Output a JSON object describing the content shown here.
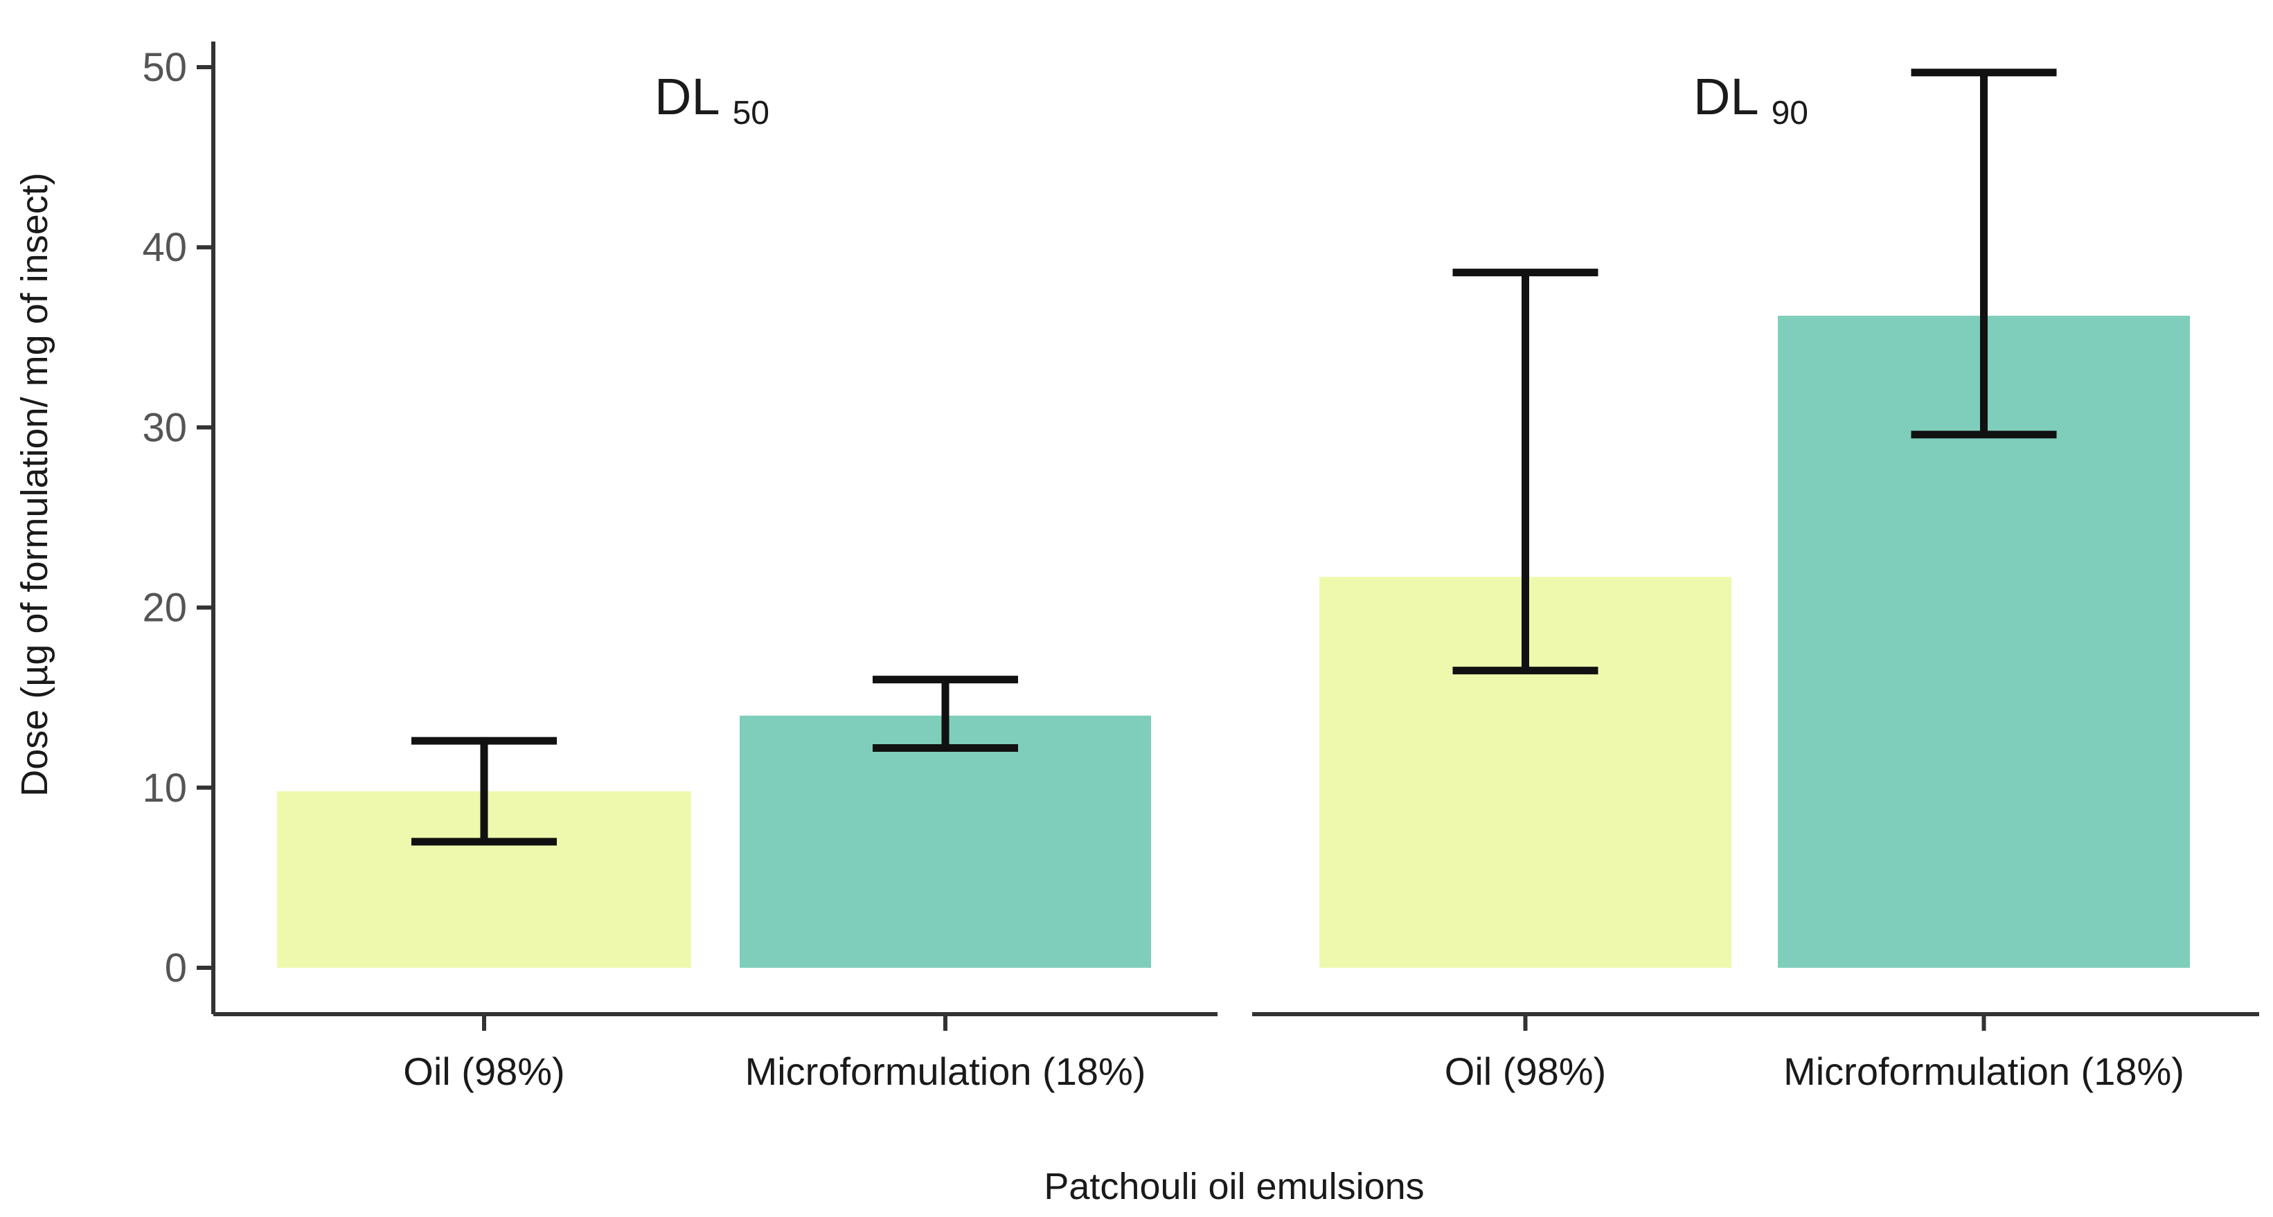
{
  "chart_data": {
    "type": "bar",
    "xlabel": "Patchouli oil emulsions",
    "ylabel": "Dose (µg of formulation/ mg of insect)",
    "ylim": [
      0,
      51
    ],
    "yticks": [
      0,
      10,
      20,
      30,
      40,
      50
    ],
    "grid": false,
    "legend": "none",
    "panels": [
      {
        "title_main": "DL",
        "title_sub": "50",
        "categories": [
          "Oil (98%)",
          "Microformulation (18%)"
        ],
        "values": [
          9.8,
          14.0
        ],
        "error_low": [
          7.0,
          12.2
        ],
        "error_high": [
          12.6,
          16.0
        ]
      },
      {
        "title_main": "DL",
        "title_sub": "90",
        "categories": [
          "Oil (98%)",
          "Microformulation (18%)"
        ],
        "values": [
          21.7,
          36.2
        ],
        "error_low": [
          16.5,
          29.6
        ],
        "error_high": [
          38.6,
          49.7
        ]
      }
    ],
    "colors": [
      "#eef9ad",
      "#7fcdbb"
    ]
  }
}
